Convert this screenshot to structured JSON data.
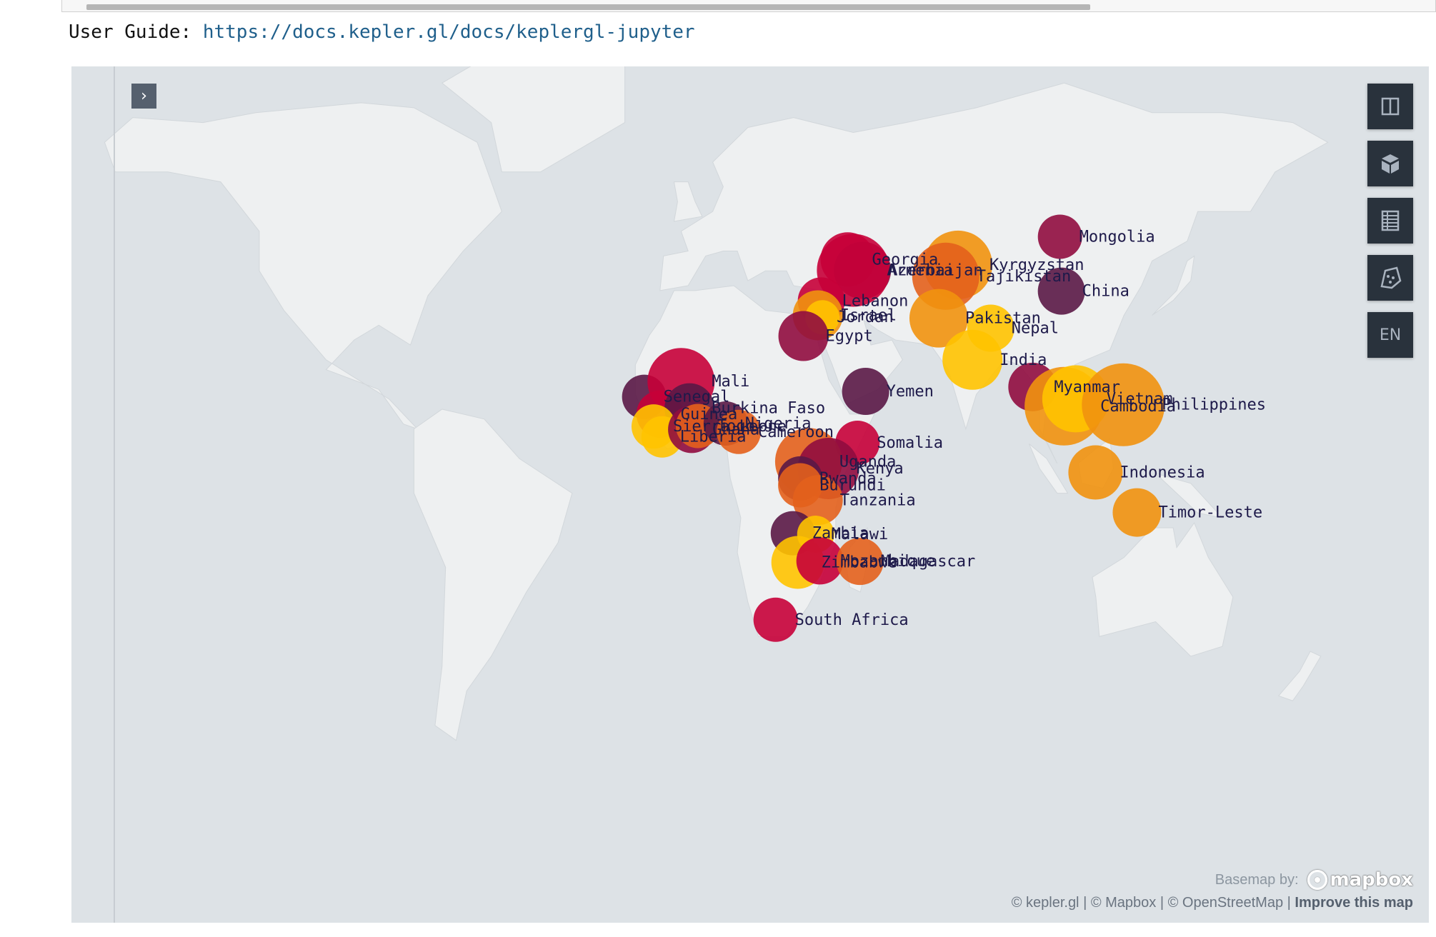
{
  "guide": {
    "prefix": "User Guide: ",
    "link": "https://docs.kepler.gl/docs/keplergl-jupyter"
  },
  "map": {
    "panel_toggle_icon": "chevron-right-icon",
    "controls": [
      {
        "name": "split-map-icon"
      },
      {
        "name": "3d-cube-icon"
      },
      {
        "name": "data-table-icon"
      },
      {
        "name": "draw-polygon-icon"
      },
      {
        "name": "locale-button",
        "label": "EN"
      }
    ],
    "basemap_label": "Basemap by:",
    "mapbox_wordmark": "mapbox",
    "attribution": {
      "kepler": "© kepler.gl",
      "mapbox": "© Mapbox",
      "osm": "© OpenStreetMap",
      "improve": "Improve this map"
    },
    "colors": {
      "ocean": "#dde2e6",
      "land": "#eef0f1",
      "label": "#1e1a4a",
      "palette": [
        "#5a1846",
        "#900c3f",
        "#c70039",
        "#e3611c",
        "#f1920e",
        "#ffc300"
      ]
    },
    "points": [
      {
        "name": "Mongolia",
        "lon": 103.8,
        "lat": 46.9,
        "color": "#900c3f",
        "r": 31
      },
      {
        "name": "China",
        "lon": 104.2,
        "lat": 35.9,
        "color": "#5a1846",
        "r": 33
      },
      {
        "name": "Georgia",
        "lon": 43.4,
        "lat": 42.3,
        "color": "#c70039",
        "r": 38
      },
      {
        "name": "Azerbaijan",
        "lon": 47.6,
        "lat": 40.1,
        "color": "#900c3f",
        "r": 40
      },
      {
        "name": "Armenia",
        "lon": 45.0,
        "lat": 40.1,
        "color": "#c70039",
        "r": 51
      },
      {
        "name": "Lebanon",
        "lon": 35.9,
        "lat": 33.9,
        "color": "#c70039",
        "r": 33
      },
      {
        "name": "Israel",
        "lon": 34.9,
        "lat": 31.0,
        "color": "#f1920e",
        "r": 35
      },
      {
        "name": "Jordan",
        "lon": 36.2,
        "lat": 30.6,
        "color": "#ffc300",
        "r": 24
      },
      {
        "name": "Egypt",
        "lon": 30.8,
        "lat": 26.8,
        "color": "#900c3f",
        "r": 35
      },
      {
        "name": "Kyrgyzstan",
        "lon": 74.8,
        "lat": 41.2,
        "color": "#f1920e",
        "r": 48
      },
      {
        "name": "Tajikistan",
        "lon": 71.3,
        "lat": 38.9,
        "color": "#e3611c",
        "r": 47
      },
      {
        "name": "Pakistan",
        "lon": 69.3,
        "lat": 30.4,
        "color": "#f1920e",
        "r": 41
      },
      {
        "name": "Nepal",
        "lon": 84.1,
        "lat": 28.4,
        "color": "#ffc300",
        "r": 33
      },
      {
        "name": "India",
        "lon": 78.9,
        "lat": 22.0,
        "color": "#ffc300",
        "r": 42
      },
      {
        "name": "Yemen",
        "lon": 48.5,
        "lat": 15.6,
        "color": "#5a1846",
        "r": 33
      },
      {
        "name": "Somalia",
        "lon": 46.2,
        "lat": 5.2,
        "color": "#c70039",
        "r": 31
      },
      {
        "name": "Myanmar",
        "lon": 96.0,
        "lat": 16.5,
        "color": "#900c3f",
        "r": 34
      },
      {
        "name": "Cambodia",
        "lon": 104.9,
        "lat": 12.6,
        "color": "#f1920e",
        "r": 55
      },
      {
        "name": "Vietnam",
        "lon": 108.3,
        "lat": 14.1,
        "color": "#ffc300",
        "r": 47
      },
      {
        "name": "Philippines",
        "lon": 121.8,
        "lat": 12.9,
        "color": "#f1920e",
        "r": 58
      },
      {
        "name": "Indonesia",
        "lon": 113.9,
        "lat": -0.8,
        "color": "#f1920e",
        "r": 38
      },
      {
        "name": "Timor-Leste",
        "lon": 125.7,
        "lat": -8.9,
        "color": "#f1920e",
        "r": 34
      },
      {
        "name": "Senegal",
        "lon": -14.5,
        "lat": 14.5,
        "color": "#5a1846",
        "r": 31
      },
      {
        "name": "Mali",
        "lon": -4.0,
        "lat": 17.6,
        "color": "#c70039",
        "r": 47
      },
      {
        "name": "Guinea",
        "lon": -10.0,
        "lat": 11.0,
        "color": "#c70039",
        "r": 33
      },
      {
        "name": "Burkina Faso",
        "lon": -1.6,
        "lat": 12.2,
        "color": "#5a1846",
        "r": 35
      },
      {
        "name": "Sierra Leone",
        "lon": -11.8,
        "lat": 8.5,
        "color": "#ffc300",
        "r": 31
      },
      {
        "name": "Liberia",
        "lon": -9.4,
        "lat": 6.4,
        "color": "#ffc300",
        "r": 29
      },
      {
        "name": "Ghana",
        "lon": -1.0,
        "lat": 7.9,
        "color": "#900c3f",
        "r": 33
      },
      {
        "name": "Togo",
        "lon": 0.8,
        "lat": 8.6,
        "color": "#e3611c",
        "r": 31
      },
      {
        "name": "Nigeria",
        "lon": 8.7,
        "lat": 9.1,
        "color": "#5a1846",
        "r": 31
      },
      {
        "name": "Cameroon",
        "lon": 12.4,
        "lat": 7.4,
        "color": "#e3611c",
        "r": 31
      },
      {
        "name": "Uganda",
        "lon": 32.3,
        "lat": 1.4,
        "color": "#e3611c",
        "r": 47
      },
      {
        "name": "Kenya",
        "lon": 37.9,
        "lat": 0.0,
        "color": "#900c3f",
        "r": 43
      },
      {
        "name": "Rwanda",
        "lon": 29.9,
        "lat": -2.0,
        "color": "#5a1846",
        "r": 31
      },
      {
        "name": "Burundi",
        "lon": 29.9,
        "lat": -3.4,
        "color": "#e3611c",
        "r": 31
      },
      {
        "name": "Tanzania",
        "lon": 34.9,
        "lat": -6.4,
        "color": "#e3611c",
        "r": 35
      },
      {
        "name": "Zambia",
        "lon": 27.8,
        "lat": -13.1,
        "color": "#5a1846",
        "r": 31
      },
      {
        "name": "Malawi",
        "lon": 34.3,
        "lat": -13.3,
        "color": "#ffc300",
        "r": 26
      },
      {
        "name": "Zimbabwe",
        "lon": 29.2,
        "lat": -19.0,
        "color": "#ffc300",
        "r": 37
      },
      {
        "name": "Mozambique",
        "lon": 35.5,
        "lat": -18.7,
        "color": "#c70039",
        "r": 33
      },
      {
        "name": "Madagascar",
        "lon": 46.9,
        "lat": -18.8,
        "color": "#e3611c",
        "r": 33
      },
      {
        "name": "South Africa",
        "lon": 22.9,
        "lat": -30.6,
        "color": "#c70039",
        "r": 31
      }
    ]
  }
}
